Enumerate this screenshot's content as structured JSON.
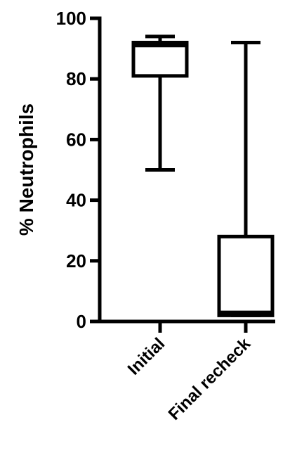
{
  "chart_data": {
    "type": "boxplot",
    "title": "",
    "xlabel": "",
    "ylabel": "% Neutrophils",
    "ylim": [
      0,
      100
    ],
    "yticks": [
      0,
      20,
      40,
      60,
      80,
      100
    ],
    "grid": false,
    "legend": "none",
    "categories": [
      "Initial",
      "Final recheck"
    ],
    "series": [
      {
        "values": [
          {
            "category": "Initial",
            "min": 50,
            "q1": 81,
            "median": 91,
            "q3": 92,
            "max": 94
          },
          {
            "category": "Final recheck",
            "min": 2,
            "q1": 2,
            "median": 3,
            "q3": 28,
            "max": 92
          }
        ]
      }
    ],
    "colors": {
      "line": "#000000",
      "box_fill": "#ffffff"
    }
  }
}
